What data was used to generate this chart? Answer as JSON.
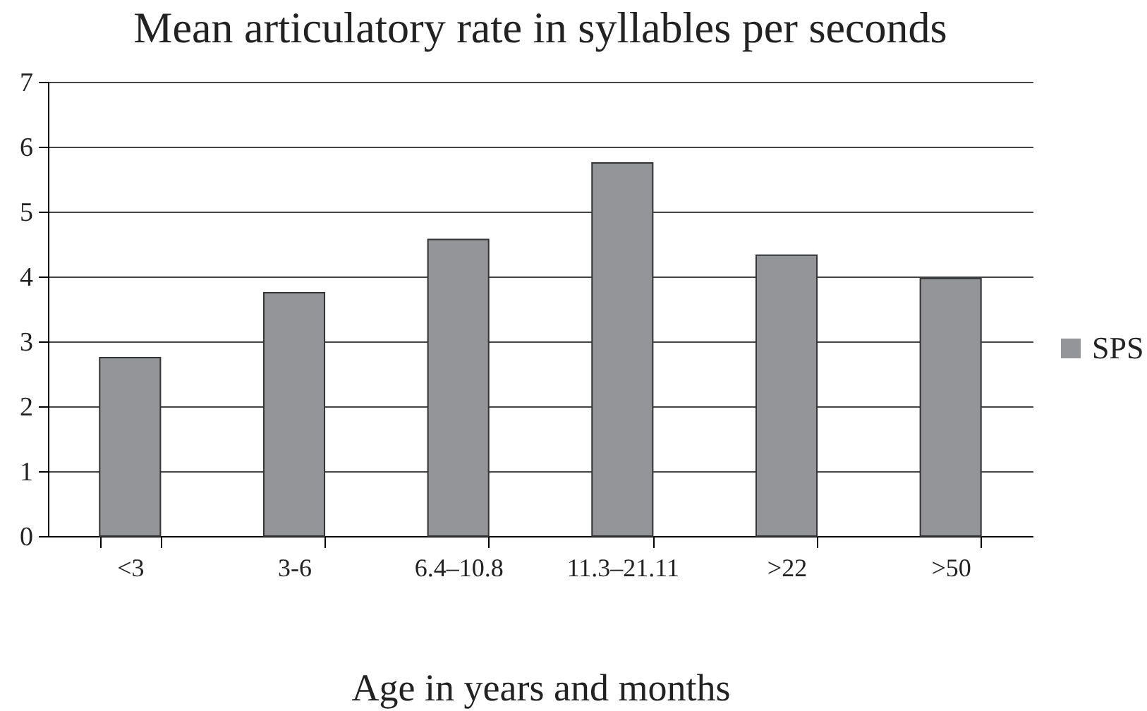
{
  "chart_data": {
    "type": "bar",
    "title": "Mean articulatory rate in syllables per seconds",
    "xlabel": "Age in years and months",
    "categories": [
      "<3",
      "3-6",
      "6.4–10.8",
      "11.3–21.11",
      ">22",
      ">50"
    ],
    "series": [
      {
        "name": "SPS",
        "color": "#939598",
        "values": [
          2.75,
          3.75,
          4.57,
          5.75,
          4.33,
          3.97
        ]
      }
    ],
    "ylim": [
      0,
      7
    ],
    "yticks": [
      0,
      1,
      2,
      3,
      4,
      5,
      6,
      7
    ],
    "grid": "y",
    "legend": "right"
  }
}
